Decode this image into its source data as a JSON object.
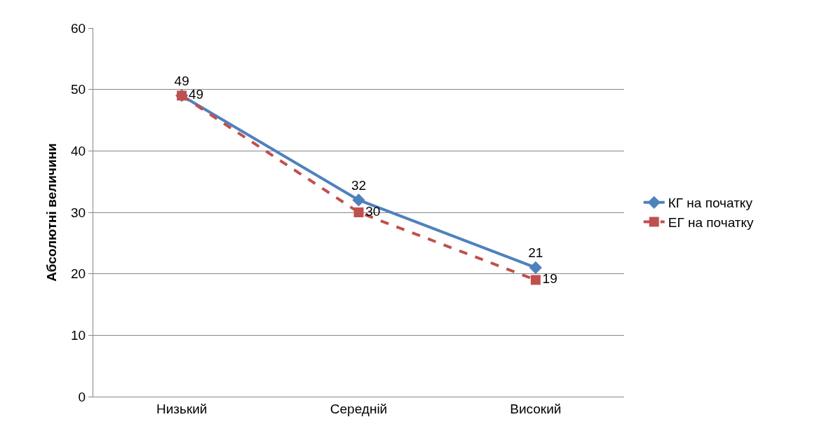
{
  "chart_data": {
    "type": "line",
    "ylabel": "Абсолютні величини",
    "categories": [
      "Низький",
      "Середній",
      "Високий"
    ],
    "series": [
      {
        "name": "КГ на початку",
        "color": "#4f81bd",
        "values": [
          49,
          32,
          21
        ],
        "marker": "diamond",
        "line_style": "solid"
      },
      {
        "name": "ЕГ на початку",
        "color": "#c0504d",
        "values": [
          49,
          30,
          19
        ],
        "marker": "square",
        "line_style": "dashed"
      }
    ],
    "ylim": [
      0,
      60
    ],
    "yticks": [
      0,
      10,
      20,
      30,
      40,
      50,
      60
    ],
    "grid": "y",
    "legend": "right",
    "data_labels": true
  }
}
